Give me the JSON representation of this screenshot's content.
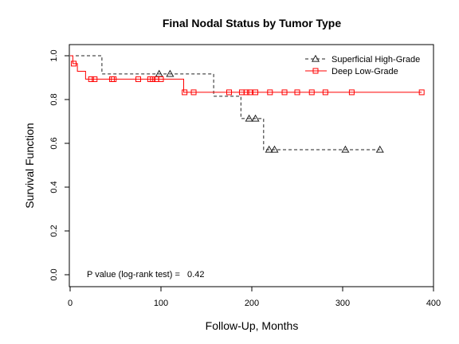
{
  "chart_data": {
    "type": "line",
    "title": "Final Nodal Status by Tumor Type",
    "xlabel": "Follow-Up, Months",
    "ylabel": "Survival Function",
    "xlim": [
      0,
      400
    ],
    "ylim": [
      0.0,
      1.0
    ],
    "x_ticks": [
      0,
      100,
      200,
      300,
      400
    ],
    "y_ticks": [
      0.0,
      0.2,
      0.4,
      0.6,
      0.8,
      1.0
    ],
    "grid": false,
    "legend_position": "top-right",
    "annotation": "P value (log-rank test) =   0.42",
    "series": [
      {
        "name": "Superficial High-Grade",
        "color": "#222222",
        "line_style": "dashed",
        "marker": "triangle",
        "steps": [
          [
            0,
            1.0
          ],
          [
            35,
            0.917
          ],
          [
            158,
            0.815
          ],
          [
            188,
            0.713
          ],
          [
            213,
            0.571
          ]
        ],
        "end_x": 341,
        "censored": [
          [
            98,
            0.917
          ],
          [
            110,
            0.917
          ],
          [
            197,
            0.713
          ],
          [
            204,
            0.713
          ],
          [
            219,
            0.571
          ],
          [
            225,
            0.571
          ],
          [
            303,
            0.571
          ],
          [
            341,
            0.571
          ]
        ]
      },
      {
        "name": "Deep Low-Grade",
        "color": "#ff0000",
        "line_style": "solid",
        "marker": "square",
        "steps": [
          [
            0,
            1.0
          ],
          [
            3,
            0.964
          ],
          [
            8,
            0.929
          ],
          [
            17,
            0.893
          ],
          [
            125,
            0.833
          ]
        ],
        "end_x": 387,
        "censored": [
          [
            4,
            0.964
          ],
          [
            23,
            0.893
          ],
          [
            27,
            0.893
          ],
          [
            46,
            0.893
          ],
          [
            48,
            0.893
          ],
          [
            75,
            0.893
          ],
          [
            88,
            0.893
          ],
          [
            91,
            0.893
          ],
          [
            95,
            0.893
          ],
          [
            100,
            0.893
          ],
          [
            126,
            0.833
          ],
          [
            136,
            0.833
          ],
          [
            175,
            0.833
          ],
          [
            189,
            0.833
          ],
          [
            194,
            0.833
          ],
          [
            198,
            0.833
          ],
          [
            204,
            0.833
          ],
          [
            220,
            0.833
          ],
          [
            236,
            0.833
          ],
          [
            250,
            0.833
          ],
          [
            266,
            0.833
          ],
          [
            281,
            0.833
          ],
          [
            310,
            0.833
          ],
          [
            387,
            0.833
          ]
        ]
      }
    ]
  }
}
